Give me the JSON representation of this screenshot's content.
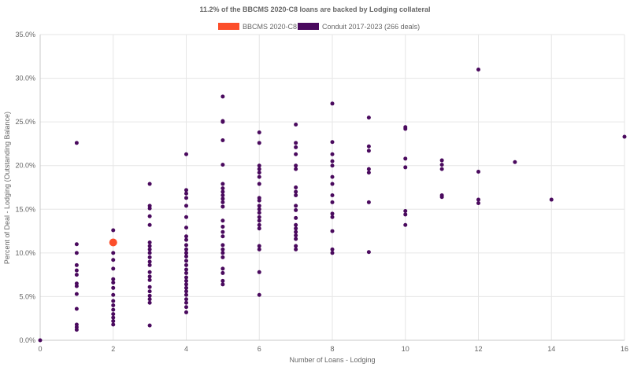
{
  "chart_data": {
    "type": "scatter",
    "title": "11.2% of the BBCMS 2020-C8 loans are backed by Lodging collateral",
    "xlabel": "Number of Loans - Lodging",
    "ylabel": "Percent of Deal - Lodging (Outstanding Balance)",
    "xlim": [
      0,
      16
    ],
    "ylim": [
      0,
      35
    ],
    "x_ticks": [
      0,
      2,
      4,
      6,
      8,
      10,
      12,
      14,
      16
    ],
    "y_ticks": [
      0,
      5,
      10,
      15,
      20,
      25,
      30,
      35
    ],
    "x_tick_labels": [
      "0",
      "2",
      "4",
      "6",
      "8",
      "10",
      "12",
      "14",
      "16"
    ],
    "y_tick_labels": [
      "0.0%",
      "5.0%",
      "10.0%",
      "15.0%",
      "20.0%",
      "25.0%",
      "30.0%",
      "35.0%"
    ],
    "grid": true,
    "legend_position": "top",
    "series": [
      {
        "name": "BBCMS 2020-C8",
        "color": "#fc4e2a",
        "points": [
          [
            2,
            11.2
          ]
        ]
      },
      {
        "name": "Conduit 2017-2023 (266 deals)",
        "color": "#4a0a5e",
        "points": [
          [
            0,
            0.0
          ],
          [
            1,
            22.6
          ],
          [
            1,
            11.0
          ],
          [
            1,
            10.0
          ],
          [
            1,
            8.6
          ],
          [
            1,
            8.0
          ],
          [
            1,
            7.5
          ],
          [
            1,
            6.5
          ],
          [
            1,
            6.2
          ],
          [
            1,
            5.3
          ],
          [
            1,
            3.6
          ],
          [
            1,
            1.8
          ],
          [
            1,
            1.5
          ],
          [
            1,
            1.2
          ],
          [
            2,
            12.6
          ],
          [
            2,
            10.0
          ],
          [
            2,
            9.2
          ],
          [
            2,
            8.2
          ],
          [
            2,
            7.0
          ],
          [
            2,
            6.6
          ],
          [
            2,
            6.0
          ],
          [
            2,
            5.2
          ],
          [
            2,
            4.5
          ],
          [
            2,
            4.0
          ],
          [
            2,
            3.5
          ],
          [
            2,
            3.0
          ],
          [
            2,
            2.6
          ],
          [
            2,
            2.2
          ],
          [
            2,
            1.8
          ],
          [
            3,
            17.9
          ],
          [
            3,
            15.4
          ],
          [
            3,
            15.1
          ],
          [
            3,
            14.2
          ],
          [
            3,
            13.2
          ],
          [
            3,
            11.2
          ],
          [
            3,
            10.8
          ],
          [
            3,
            10.4
          ],
          [
            3,
            10.0
          ],
          [
            3,
            9.5
          ],
          [
            3,
            9.0
          ],
          [
            3,
            8.6
          ],
          [
            3,
            7.8
          ],
          [
            3,
            7.3
          ],
          [
            3,
            6.9
          ],
          [
            3,
            6.1
          ],
          [
            3,
            5.6
          ],
          [
            3,
            5.1
          ],
          [
            3,
            4.7
          ],
          [
            3,
            4.3
          ],
          [
            3,
            1.7
          ],
          [
            4,
            21.3
          ],
          [
            4,
            17.2
          ],
          [
            4,
            16.8
          ],
          [
            4,
            16.3
          ],
          [
            4,
            15.4
          ],
          [
            4,
            14.1
          ],
          [
            4,
            12.9
          ],
          [
            4,
            11.9
          ],
          [
            4,
            11.5
          ],
          [
            4,
            10.9
          ],
          [
            4,
            10.4
          ],
          [
            4,
            10.0
          ],
          [
            4,
            9.6
          ],
          [
            4,
            9.1
          ],
          [
            4,
            8.6
          ],
          [
            4,
            8.1
          ],
          [
            4,
            7.7
          ],
          [
            4,
            7.2
          ],
          [
            4,
            6.8
          ],
          [
            4,
            6.4
          ],
          [
            4,
            6.0
          ],
          [
            4,
            5.6
          ],
          [
            4,
            5.2
          ],
          [
            4,
            4.7
          ],
          [
            4,
            4.3
          ],
          [
            4,
            3.8
          ],
          [
            4,
            3.2
          ],
          [
            5,
            27.9
          ],
          [
            5,
            25.1
          ],
          [
            5,
            25.0
          ],
          [
            5,
            22.9
          ],
          [
            5,
            20.1
          ],
          [
            5,
            17.9
          ],
          [
            5,
            17.4
          ],
          [
            5,
            17.0
          ],
          [
            5,
            16.6
          ],
          [
            5,
            16.2
          ],
          [
            5,
            15.8
          ],
          [
            5,
            15.3
          ],
          [
            5,
            13.7
          ],
          [
            5,
            13.0
          ],
          [
            5,
            12.4
          ],
          [
            5,
            11.9
          ],
          [
            5,
            10.9
          ],
          [
            5,
            10.4
          ],
          [
            5,
            10.0
          ],
          [
            5,
            9.5
          ],
          [
            5,
            8.2
          ],
          [
            5,
            7.7
          ],
          [
            5,
            6.8
          ],
          [
            5,
            6.4
          ],
          [
            6,
            23.8
          ],
          [
            6,
            22.6
          ],
          [
            6,
            20.0
          ],
          [
            6,
            19.6
          ],
          [
            6,
            19.2
          ],
          [
            6,
            18.7
          ],
          [
            6,
            17.9
          ],
          [
            6,
            16.3
          ],
          [
            6,
            16.0
          ],
          [
            6,
            15.4
          ],
          [
            6,
            15.0
          ],
          [
            6,
            14.6
          ],
          [
            6,
            14.1
          ],
          [
            6,
            13.7
          ],
          [
            6,
            13.2
          ],
          [
            6,
            12.8
          ],
          [
            6,
            10.8
          ],
          [
            6,
            10.4
          ],
          [
            6,
            7.8
          ],
          [
            6,
            5.2
          ],
          [
            7,
            24.7
          ],
          [
            7,
            22.6
          ],
          [
            7,
            22.1
          ],
          [
            7,
            21.3
          ],
          [
            7,
            20.0
          ],
          [
            7,
            19.6
          ],
          [
            7,
            17.5
          ],
          [
            7,
            17.0
          ],
          [
            7,
            16.6
          ],
          [
            7,
            15.4
          ],
          [
            7,
            14.9
          ],
          [
            7,
            14.0
          ],
          [
            7,
            13.2
          ],
          [
            7,
            12.8
          ],
          [
            7,
            12.4
          ],
          [
            7,
            12.0
          ],
          [
            7,
            11.6
          ],
          [
            7,
            10.8
          ],
          [
            7,
            10.4
          ],
          [
            8,
            27.1
          ],
          [
            8,
            22.7
          ],
          [
            8,
            21.3
          ],
          [
            8,
            20.5
          ],
          [
            8,
            20.0
          ],
          [
            8,
            18.7
          ],
          [
            8,
            17.9
          ],
          [
            8,
            16.6
          ],
          [
            8,
            15.8
          ],
          [
            8,
            14.5
          ],
          [
            8,
            14.1
          ],
          [
            8,
            12.5
          ],
          [
            8,
            10.4
          ],
          [
            8,
            10.0
          ],
          [
            9,
            25.5
          ],
          [
            9,
            22.2
          ],
          [
            9,
            21.7
          ],
          [
            9,
            19.6
          ],
          [
            9,
            19.2
          ],
          [
            9,
            15.8
          ],
          [
            9,
            10.1
          ],
          [
            10,
            24.4
          ],
          [
            10,
            24.2
          ],
          [
            10,
            20.8
          ],
          [
            10,
            19.8
          ],
          [
            10,
            14.8
          ],
          [
            10,
            14.4
          ],
          [
            10,
            13.2
          ],
          [
            11,
            20.6
          ],
          [
            11,
            20.1
          ],
          [
            11,
            19.6
          ],
          [
            11,
            16.6
          ],
          [
            11,
            16.4
          ],
          [
            12,
            31.0
          ],
          [
            12,
            19.3
          ],
          [
            12,
            16.1
          ],
          [
            12,
            15.7
          ],
          [
            13,
            20.4
          ],
          [
            14,
            16.1
          ],
          [
            16,
            23.3
          ]
        ]
      }
    ]
  }
}
